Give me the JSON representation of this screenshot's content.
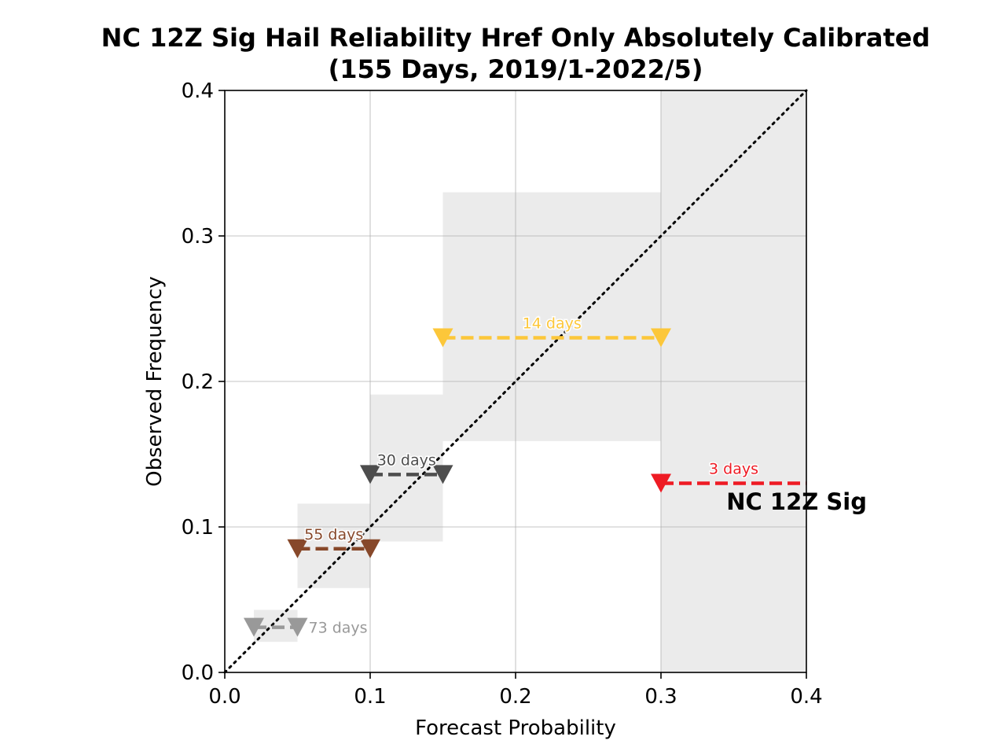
{
  "chart_data": {
    "type": "scatter",
    "title_lines": [
      "NC 12Z Sig Hail Reliability Href Only Absolutely Calibrated",
      "(155 Days, 2019/1-2022/5)"
    ],
    "xlabel": "Forecast Probability",
    "ylabel": "Observed Frequency",
    "xlim": [
      0.0,
      0.4
    ],
    "ylim": [
      0.0,
      0.4
    ],
    "x_ticks": [
      "0.0",
      "0.1",
      "0.2",
      "0.3",
      "0.4"
    ],
    "y_ticks": [
      "0.0",
      "0.1",
      "0.2",
      "0.3",
      "0.4"
    ],
    "grid": true,
    "reference_line": {
      "from": [
        0.0,
        0.0
      ],
      "to": [
        0.4,
        0.4
      ],
      "style": "dotted",
      "color": "#000000"
    },
    "series": [
      {
        "label": "73 days",
        "color": "#999999",
        "x": [
          0.02,
          0.05
        ],
        "y": 0.031,
        "ci_x": [
          0.02,
          0.05
        ],
        "ci_y": [
          0.021,
          0.043
        ],
        "label_side": "right"
      },
      {
        "label": "55 days",
        "color": "#87482a",
        "x": [
          0.05,
          0.1
        ],
        "y": 0.085,
        "ci_x": [
          0.05,
          0.1
        ],
        "ci_y": [
          0.058,
          0.116
        ],
        "label_side": "above"
      },
      {
        "label": "30 days",
        "color": "#4d4d4d",
        "x": [
          0.1,
          0.15
        ],
        "y": 0.136,
        "ci_x": [
          0.1,
          0.15
        ],
        "ci_y": [
          0.09,
          0.191
        ],
        "label_side": "above"
      },
      {
        "label": "14 days",
        "color": "#fcc73a",
        "x": [
          0.15,
          0.3
        ],
        "y": 0.23,
        "ci_x": [
          0.15,
          0.3
        ],
        "ci_y": [
          0.159,
          0.33
        ],
        "label_side": "above"
      },
      {
        "label": "3 days",
        "color": "#ee1b24",
        "x": [
          0.3,
          0.4
        ],
        "y": 0.13,
        "ci_x": [
          0.3,
          0.4
        ],
        "ci_y": [
          0.0,
          0.4
        ],
        "label_side": "above",
        "right_open": true
      }
    ],
    "annotation": {
      "text": "NC 12Z Sig",
      "x": 0.345,
      "y": 0.112
    },
    "colors": {
      "ci_fill": "#ebebeb",
      "grid": "#b0b0b0"
    }
  }
}
